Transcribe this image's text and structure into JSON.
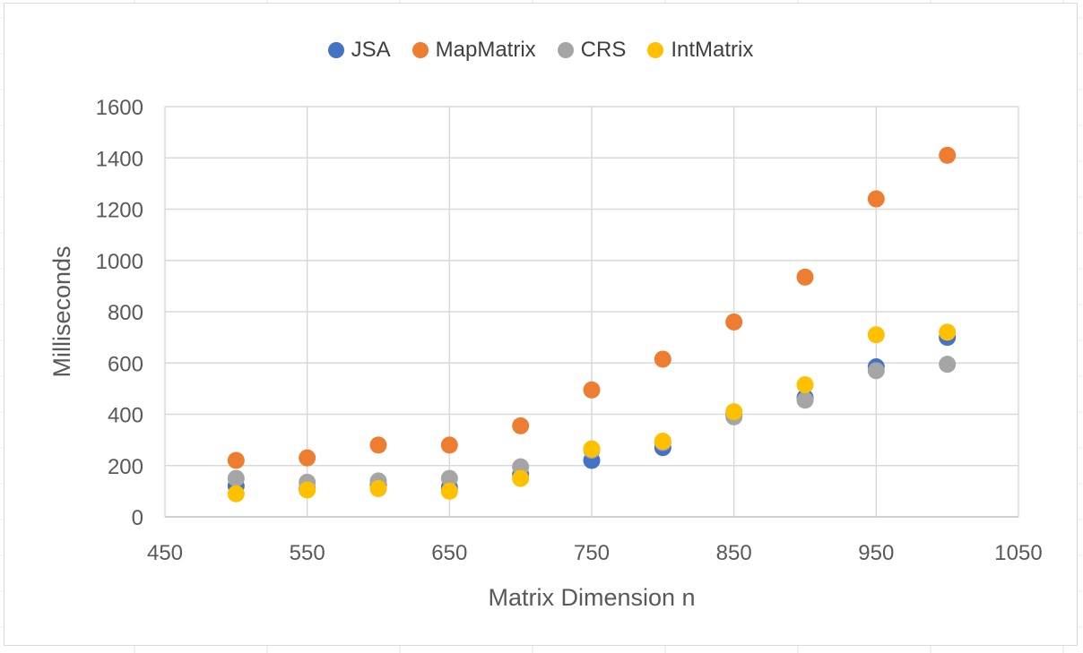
{
  "chart_data": {
    "type": "scatter",
    "title": "",
    "xlabel": "Matrix Dimension n",
    "ylabel": "Milliseconds",
    "xlim": [
      450,
      1050
    ],
    "ylim": [
      0,
      1600
    ],
    "xticks": [
      450,
      550,
      650,
      750,
      850,
      950,
      1050
    ],
    "yticks": [
      0,
      200,
      400,
      600,
      800,
      1000,
      1200,
      1400,
      1600
    ],
    "x_tick_labels": [
      "450",
      "550",
      "650",
      "750",
      "850",
      "950",
      "1050"
    ],
    "y_tick_labels": [
      "0",
      "200",
      "400",
      "600",
      "800",
      "1000",
      "1200",
      "1400",
      "1600"
    ],
    "x_gridlines": [
      450,
      550,
      650,
      750,
      850,
      950,
      1050
    ],
    "grid": true,
    "legend_position": "top",
    "x": [
      500,
      550,
      600,
      650,
      700,
      750,
      800,
      850,
      900,
      950,
      1000
    ],
    "series": [
      {
        "name": "JSA",
        "color": "#4472c4",
        "values": [
          120,
          110,
          125,
          115,
          165,
          220,
          270,
          400,
          465,
          585,
          700
        ]
      },
      {
        "name": "MapMatrix",
        "color": "#ed7d31",
        "values": [
          220,
          230,
          280,
          280,
          355,
          495,
          615,
          760,
          935,
          1240,
          1410
        ]
      },
      {
        "name": "CRS",
        "color": "#a5a5a5",
        "values": [
          150,
          135,
          140,
          150,
          195,
          260,
          290,
          390,
          455,
          570,
          595
        ]
      },
      {
        "name": "IntMatrix",
        "color": "#ffc000",
        "values": [
          90,
          105,
          110,
          100,
          150,
          265,
          295,
          410,
          515,
          710,
          720
        ]
      }
    ]
  }
}
